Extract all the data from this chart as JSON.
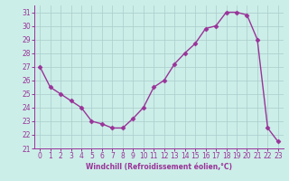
{
  "hours": [
    0,
    1,
    2,
    3,
    4,
    5,
    6,
    7,
    8,
    9,
    10,
    11,
    12,
    13,
    14,
    15,
    16,
    17,
    18,
    19,
    20,
    21,
    22,
    23
  ],
  "values": [
    27.0,
    25.5,
    25.0,
    24.5,
    24.0,
    23.0,
    22.8,
    22.5,
    22.5,
    23.2,
    24.0,
    25.5,
    26.0,
    27.2,
    28.0,
    28.7,
    29.8,
    30.0,
    31.0,
    31.0,
    30.8,
    29.0,
    22.5,
    21.5
  ],
  "line_color": "#993399",
  "marker": "D",
  "marker_size": 2.5,
  "bg_color": "#cceee8",
  "grid_color": "#aacccc",
  "xlabel": "Windchill (Refroidissement éolien,°C)",
  "xlabel_color": "#993399",
  "tick_color": "#993399",
  "spine_color": "#993399",
  "ylim": [
    21,
    31.5
  ],
  "xlim": [
    -0.5,
    23.5
  ],
  "yticks": [
    21,
    22,
    23,
    24,
    25,
    26,
    27,
    28,
    29,
    30,
    31
  ],
  "xticks": [
    0,
    1,
    2,
    3,
    4,
    5,
    6,
    7,
    8,
    9,
    10,
    11,
    12,
    13,
    14,
    15,
    16,
    17,
    18,
    19,
    20,
    21,
    22,
    23
  ],
  "tick_fontsize": 5.5,
  "xlabel_fontsize": 5.5,
  "linewidth": 1.0
}
